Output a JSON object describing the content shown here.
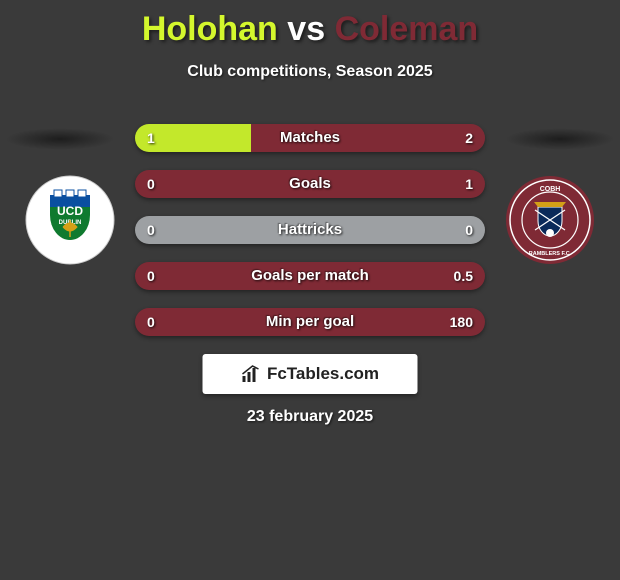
{
  "title": {
    "player1": "Holohan",
    "vs": "vs",
    "player2": "Coleman",
    "player1_color": "#d4f72d",
    "player2_color": "#7f2a35"
  },
  "subtitle": "Club competitions, Season 2025",
  "crest_left": {
    "bg": "#ffffff",
    "top_color": "#0a4fa0",
    "bottom_color": "#0f7a2f",
    "text": "UCD",
    "sub": "DUBLIN"
  },
  "crest_right": {
    "bg": "#7f2a35",
    "ring": "#ffffff",
    "text_top": "COBH",
    "text_bottom": "RAMBLERS F.C."
  },
  "bars": [
    {
      "label": "Matches",
      "left_val": "1",
      "right_val": "2",
      "left_pct": 33,
      "right_pct": 67
    },
    {
      "label": "Goals",
      "left_val": "0",
      "right_val": "1",
      "left_pct": 0,
      "right_pct": 100
    },
    {
      "label": "Hattricks",
      "left_val": "0",
      "right_val": "0",
      "left_pct": 50,
      "right_pct": 50
    },
    {
      "label": "Goals per match",
      "left_val": "0",
      "right_val": "0.5",
      "left_pct": 0,
      "right_pct": 100
    },
    {
      "label": "Min per goal",
      "left_val": "0",
      "right_val": "180",
      "left_pct": 0,
      "right_pct": 100
    }
  ],
  "bar_colors": {
    "left": "#c3e82b",
    "right": "#7f2a35",
    "neutral": "#9da0a3"
  },
  "brand": "FcTables.com",
  "date": "23 february 2025"
}
